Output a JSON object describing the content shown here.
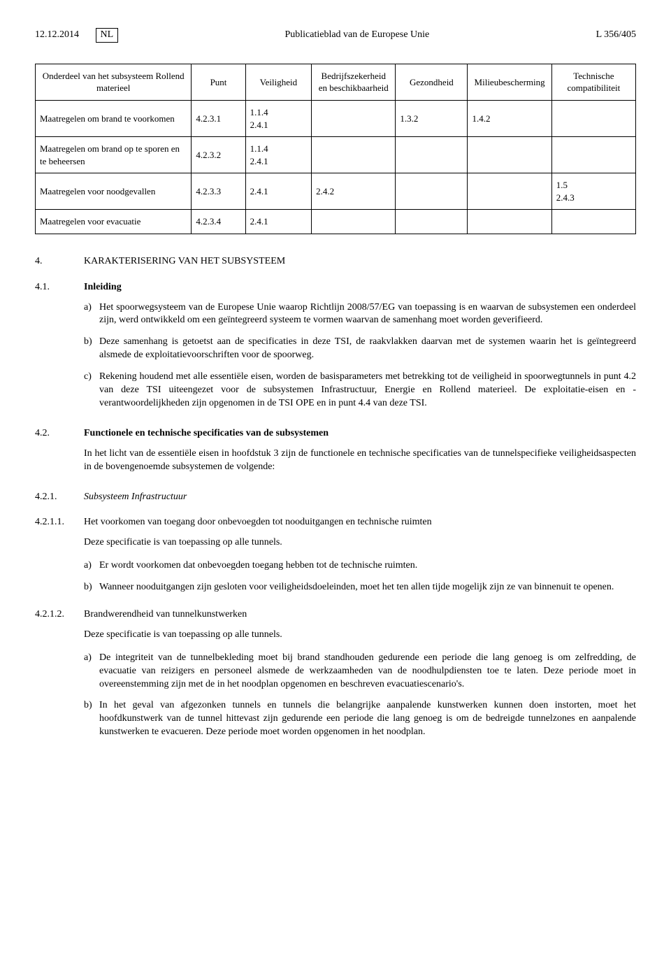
{
  "header": {
    "date": "12.12.2014",
    "lang": "NL",
    "journal": "Publicatieblad van de Europese Unie",
    "page": "L 356/405"
  },
  "table": {
    "columns": [
      "Onderdeel van het subsysteem Rollend materieel",
      "Punt",
      "Veiligheid",
      "Bedrijfszeker­heid en beschikbaar­heid",
      "Gezondheid",
      "Milieubescher­ming",
      "Technische compatibiliteit"
    ],
    "rows": [
      {
        "c0": "Maatregelen om brand te voorkomen",
        "c1": "4.2.3.1",
        "c2": "1.1.4\n2.4.1",
        "c3": "",
        "c4": "1.3.2",
        "c5": "1.4.2",
        "c6": ""
      },
      {
        "c0": "Maatregelen om brand op te sporen en te beheersen",
        "c1": "4.2.3.2",
        "c2": "1.1.4\n2.4.1",
        "c3": "",
        "c4": "",
        "c5": "",
        "c6": ""
      },
      {
        "c0": "Maatregelen voor noodge­vallen",
        "c1": "4.2.3.3",
        "c2": "2.4.1",
        "c3": "2.4.2",
        "c4": "",
        "c5": "",
        "c6": "1.5\n2.4.3"
      },
      {
        "c0": "Maatregelen voor evacuatie",
        "c1": "4.2.3.4",
        "c2": "2.4.1",
        "c3": "",
        "c4": "",
        "c5": "",
        "c6": ""
      }
    ]
  },
  "s4": {
    "num": "4.",
    "title": "KARAKTERISERING VAN HET SUBSYSTEEM"
  },
  "s41": {
    "num": "4.1.",
    "title": "Inleiding",
    "a": "Het spoorwegsysteem van de Europese Unie waarop Richtlijn 2008/57/EG van toepassing is en waarvan de subsystemen een onderdeel zijn, werd ontwikkeld om een geïntegreerd systeem te vormen waarvan de samenhang moet worden geverifieerd.",
    "b": "Deze samenhang is getoetst aan de specificaties in deze TSI, de raakvlakken daarvan met de systemen waarin het is geïntegreerd alsmede de exploitatievoorschriften voor de spoorweg.",
    "c": "Rekening houdend met alle essentiële eisen, worden de basisparameters met betrekking tot de veiligheid in spoorwegtunnels in punt 4.2 van deze TSI uiteengezet voor de subsystemen Infrastructuur, Energie en Rollend materieel. De exploitatie-eisen en -verantwoordelijkheden zijn opgenomen in de TSI OPE en in punt 4.4 van deze TSI."
  },
  "s42": {
    "num": "4.2.",
    "title": "Functionele en technische specificaties van de subsystemen",
    "intro": "In het licht van de essentiële eisen in hoofdstuk 3 zijn de functionele en technische specificaties van de tunnel­specifieke veiligheidsaspecten in de bovengenoemde subsystemen de volgende:"
  },
  "s421": {
    "num": "4.2.1.",
    "title": "Subsysteem Infrastructuur"
  },
  "s4211": {
    "num": "4.2.1.1.",
    "title": "Het voorkomen van toegang door onbevoegden tot nooduitgangen en technische ruimten",
    "intro": "Deze specificatie is van toepassing op alle tunnels.",
    "a": "Er wordt voorkomen dat onbevoegden toegang hebben tot de technische ruimten.",
    "b": "Wanneer nooduitgangen zijn gesloten voor veiligheidsdoeleinden, moet het ten allen tijde mogelijk zijn ze van binnenuit te openen."
  },
  "s4212": {
    "num": "4.2.1.2.",
    "title": "Brandwerendheid van tunnelkunstwerken",
    "intro": "Deze specificatie is van toepassing op alle tunnels.",
    "a": "De integriteit van de tunnelbekleding moet bij brand standhouden gedurende een periode die lang genoeg is om zelfredding, de evacuatie van reizigers en personeel alsmede de werkzaamheden van de noodhulp­diensten toe te laten. Deze periode moet in overeenstemming zijn met de in het noodplan opgenomen en beschreven evacuatiescenario's.",
    "b": "In het geval van afgezonken tunnels en tunnels die belangrijke aanpalende kunstwerken kunnen doen instorten, moet het hoofdkunstwerk van de tunnel hittevast zijn gedurende een periode die lang genoeg is om de bedreigde tunnelzones en aanpalende kunstwerken te evacueren. Deze periode moet worden opge­nomen in het noodplan."
  },
  "labels": {
    "a": "a)",
    "b": "b)",
    "c": "c)"
  }
}
